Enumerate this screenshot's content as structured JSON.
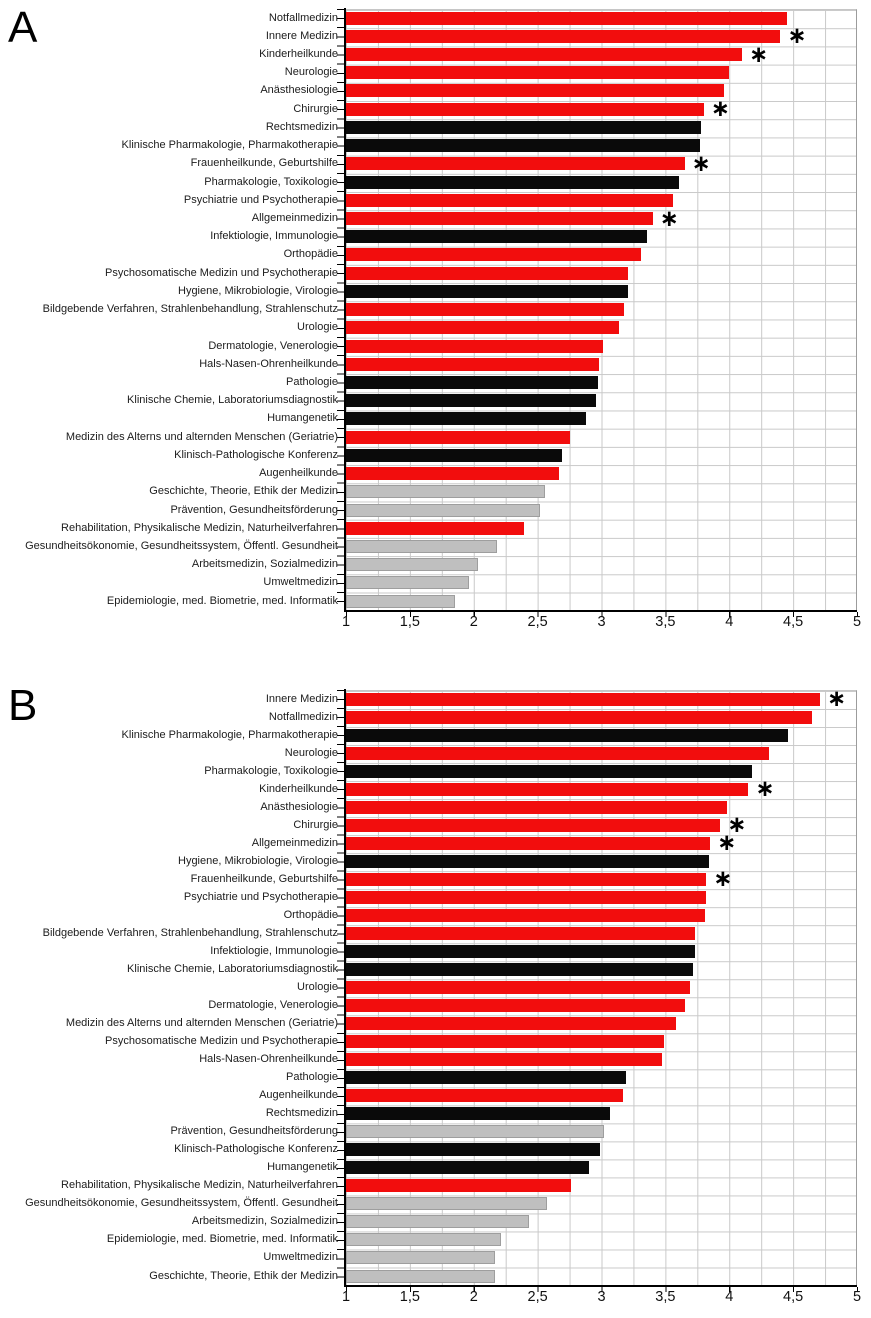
{
  "colors": {
    "red": "#f20d0d",
    "black": "#0a0a0a",
    "gray": "#bfbfbf"
  },
  "significance_marker": "∗",
  "chart_data": [
    {
      "type": "bar",
      "letter": "A",
      "orientation": "horizontal",
      "axis": {
        "min": 1,
        "max": 5,
        "ticks": [
          "1",
          "1,5",
          "2",
          "2,5",
          "3",
          "3,5",
          "4",
          "4,5",
          "5"
        ]
      },
      "grid": "on",
      "bars": [
        {
          "label": "Notfallmedizin",
          "value": 4.45,
          "color": "red",
          "significant": false
        },
        {
          "label": "Innere Medizin",
          "value": 4.4,
          "color": "red",
          "significant": true
        },
        {
          "label": "Kinderheilkunde",
          "value": 4.1,
          "color": "red",
          "significant": true
        },
        {
          "label": "Neurologie",
          "value": 4.0,
          "color": "red",
          "significant": false
        },
        {
          "label": "Anästhesiologie",
          "value": 3.96,
          "color": "red",
          "significant": false
        },
        {
          "label": "Chirurgie",
          "value": 3.8,
          "color": "red",
          "significant": true
        },
        {
          "label": "Rechtsmedizin",
          "value": 3.78,
          "color": "black",
          "significant": false
        },
        {
          "label": "Klinische Pharmakologie, Pharmakotherapie",
          "value": 3.77,
          "color": "black",
          "significant": false
        },
        {
          "label": "Frauenheilkunde, Geburtshilfe",
          "value": 3.65,
          "color": "red",
          "significant": true
        },
        {
          "label": "Pharmakologie, Toxikologie",
          "value": 3.61,
          "color": "black",
          "significant": false
        },
        {
          "label": "Psychiatrie und Psychotherapie",
          "value": 3.56,
          "color": "red",
          "significant": false
        },
        {
          "label": "Allgemeinmedizin",
          "value": 3.4,
          "color": "red",
          "significant": true
        },
        {
          "label": "Infektiologie, Immunologie",
          "value": 3.36,
          "color": "black",
          "significant": false
        },
        {
          "label": "Orthopädie",
          "value": 3.31,
          "color": "red",
          "significant": false
        },
        {
          "label": "Psychosomatische Medizin und Psychotherapie",
          "value": 3.21,
          "color": "red",
          "significant": false
        },
        {
          "label": "Hygiene, Mikrobiologie, Virologie",
          "value": 3.21,
          "color": "black",
          "significant": false
        },
        {
          "label": "Bildgebende Verfahren, Strahlenbehandlung, Strahlenschutz",
          "value": 3.18,
          "color": "red",
          "significant": false
        },
        {
          "label": "Urologie",
          "value": 3.14,
          "color": "red",
          "significant": false
        },
        {
          "label": "Dermatologie, Venerologie",
          "value": 3.01,
          "color": "red",
          "significant": false
        },
        {
          "label": "Hals-Nasen-Ohrenheilkunde",
          "value": 2.98,
          "color": "red",
          "significant": false
        },
        {
          "label": "Pathologie",
          "value": 2.97,
          "color": "black",
          "significant": false
        },
        {
          "label": "Klinische Chemie, Laboratoriumsdiagnostik",
          "value": 2.96,
          "color": "black",
          "significant": false
        },
        {
          "label": "Humangenetik",
          "value": 2.88,
          "color": "black",
          "significant": false
        },
        {
          "label": "Medizin des Alterns und alternden Menschen (Geriatrie)",
          "value": 2.75,
          "color": "red",
          "significant": false
        },
        {
          "label": "Klinisch-Pathologische Konferenz",
          "value": 2.69,
          "color": "black",
          "significant": false
        },
        {
          "label": "Augenheilkunde",
          "value": 2.67,
          "color": "red",
          "significant": false
        },
        {
          "label": "Geschichte, Theorie, Ethik der Medizin",
          "value": 2.56,
          "color": "gray",
          "significant": false
        },
        {
          "label": "Prävention, Gesundheitsförderung",
          "value": 2.52,
          "color": "gray",
          "significant": false
        },
        {
          "label": "Rehabilitation, Physikalische Medizin, Naturheilverfahren",
          "value": 2.39,
          "color": "red",
          "significant": false
        },
        {
          "label": "Gesundheitsökonomie, Gesundheitssystem, Öffentl. Gesundheit",
          "value": 2.18,
          "color": "gray",
          "significant": false
        },
        {
          "label": "Arbeitsmedizin, Sozialmedizin",
          "value": 2.03,
          "color": "gray",
          "significant": false
        },
        {
          "label": "Umweltmedizin",
          "value": 1.96,
          "color": "gray",
          "significant": false
        },
        {
          "label": "Epidemiologie, med. Biometrie, med. Informatik",
          "value": 1.85,
          "color": "gray",
          "significant": false
        }
      ]
    },
    {
      "type": "bar",
      "letter": "B",
      "orientation": "horizontal",
      "axis": {
        "min": 1,
        "max": 5,
        "ticks": [
          "1",
          "1,5",
          "2",
          "2,5",
          "3",
          "3,5",
          "4",
          "4,5",
          "5"
        ]
      },
      "grid": "on",
      "bars": [
        {
          "label": "Innere Medizin",
          "value": 4.71,
          "color": "red",
          "significant": true
        },
        {
          "label": "Notfallmedizin",
          "value": 4.65,
          "color": "red",
          "significant": false
        },
        {
          "label": "Klinische Pharmakologie, Pharmakotherapie",
          "value": 4.46,
          "color": "black",
          "significant": false
        },
        {
          "label": "Neurologie",
          "value": 4.31,
          "color": "red",
          "significant": false
        },
        {
          "label": "Pharmakologie, Toxikologie",
          "value": 4.18,
          "color": "black",
          "significant": false
        },
        {
          "label": "Kinderheilkunde",
          "value": 4.15,
          "color": "red",
          "significant": true
        },
        {
          "label": "Anästhesiologie",
          "value": 3.98,
          "color": "red",
          "significant": false
        },
        {
          "label": "Chirurgie",
          "value": 3.93,
          "color": "red",
          "significant": true
        },
        {
          "label": "Allgemeinmedizin",
          "value": 3.85,
          "color": "red",
          "significant": true
        },
        {
          "label": "Hygiene, Mikrobiologie, Virologie",
          "value": 3.84,
          "color": "black",
          "significant": false
        },
        {
          "label": "Frauenheilkunde, Geburtshilfe",
          "value": 3.82,
          "color": "red",
          "significant": true
        },
        {
          "label": "Psychiatrie und Psychotherapie",
          "value": 3.82,
          "color": "red",
          "significant": false
        },
        {
          "label": "Orthopädie",
          "value": 3.81,
          "color": "red",
          "significant": false
        },
        {
          "label": "Bildgebende Verfahren, Strahlenbehandlung, Strahlenschutz",
          "value": 3.73,
          "color": "red",
          "significant": false
        },
        {
          "label": "Infektiologie, Immunologie",
          "value": 3.73,
          "color": "black",
          "significant": false
        },
        {
          "label": "Klinische Chemie, Laboratoriumsdiagnostik",
          "value": 3.72,
          "color": "black",
          "significant": false
        },
        {
          "label": "Urologie",
          "value": 3.69,
          "color": "red",
          "significant": false
        },
        {
          "label": "Dermatologie, Venerologie",
          "value": 3.65,
          "color": "red",
          "significant": false
        },
        {
          "label": "Medizin des Alterns und alternden Menschen (Geriatrie)",
          "value": 3.58,
          "color": "red",
          "significant": false
        },
        {
          "label": "Psychosomatische Medizin und Psychotherapie",
          "value": 3.49,
          "color": "red",
          "significant": false
        },
        {
          "label": "Hals-Nasen-Ohrenheilkunde",
          "value": 3.47,
          "color": "red",
          "significant": false
        },
        {
          "label": "Pathologie",
          "value": 3.19,
          "color": "black",
          "significant": false
        },
        {
          "label": "Augenheilkunde",
          "value": 3.17,
          "color": "red",
          "significant": false
        },
        {
          "label": "Rechtsmedizin",
          "value": 3.07,
          "color": "black",
          "significant": false
        },
        {
          "label": "Prävention, Gesundheitsförderung",
          "value": 3.02,
          "color": "gray",
          "significant": false
        },
        {
          "label": "Klinisch-Pathologische Konferenz",
          "value": 2.99,
          "color": "black",
          "significant": false
        },
        {
          "label": "Humangenetik",
          "value": 2.9,
          "color": "black",
          "significant": false
        },
        {
          "label": "Rehabilitation, Physikalische Medizin, Naturheilverfahren",
          "value": 2.76,
          "color": "red",
          "significant": false
        },
        {
          "label": "Gesundheitsökonomie, Gesundheitssystem, Öffentl. Gesundheit",
          "value": 2.57,
          "color": "gray",
          "significant": false
        },
        {
          "label": "Arbeitsmedizin, Sozialmedizin",
          "value": 2.43,
          "color": "gray",
          "significant": false
        },
        {
          "label": "Epidemiologie, med. Biometrie, med. Informatik",
          "value": 2.21,
          "color": "gray",
          "significant": false
        },
        {
          "label": "Umweltmedizin",
          "value": 2.17,
          "color": "gray",
          "significant": false
        },
        {
          "label": "Geschichte, Theorie, Ethik der Medizin",
          "value": 2.17,
          "color": "gray",
          "significant": false
        }
      ]
    }
  ]
}
